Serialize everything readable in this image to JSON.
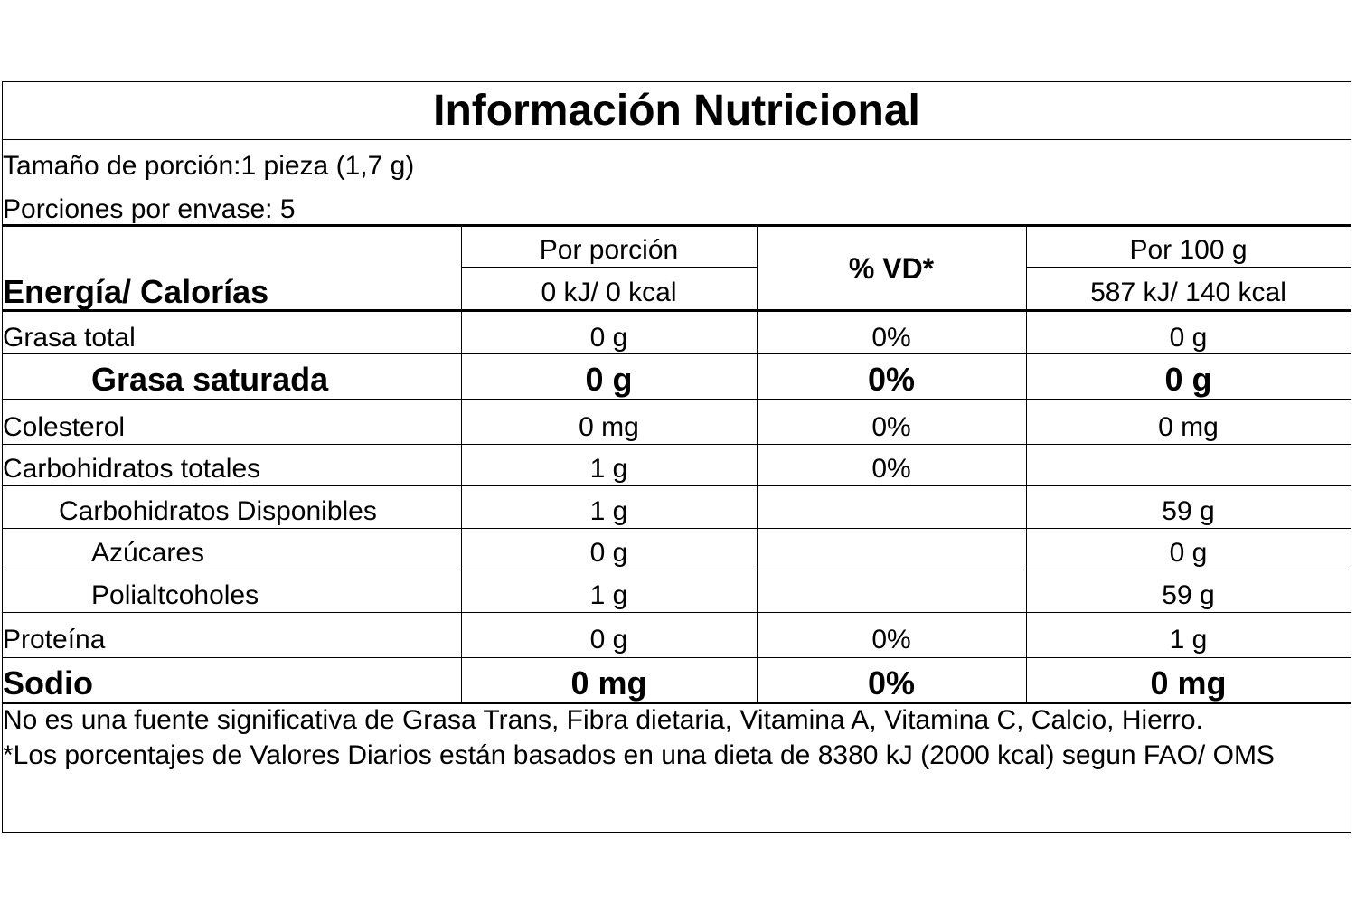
{
  "title": "Información Nutricional",
  "serving_size": "Tamaño de porción:1 pieza (1,7 g)",
  "servings_per_container": "Porciones por envase: 5",
  "header": {
    "energy_label": "Energía/ Calorías",
    "per_serving_label": "Por porción",
    "per_serving_energy": "0 kJ/ 0 kcal",
    "dv_label": "% VD*",
    "per_100g_label": "Por 100 g",
    "per_100g_energy": "587 kJ/ 140 kcal"
  },
  "rows": [
    {
      "name": "Grasa total",
      "per_serving": "0 g",
      "dv": "0%",
      "per_100g": "0 g"
    },
    {
      "name": "Grasa saturada",
      "per_serving": "0 g",
      "dv": "0%",
      "per_100g": "0 g"
    },
    {
      "name": "Colesterol",
      "per_serving": "0 mg",
      "dv": "0%",
      "per_100g": "0 mg"
    },
    {
      "name": "Carbohidratos totales",
      "per_serving": "1 g",
      "dv": "0%",
      "per_100g": ""
    },
    {
      "name": "Carbohidratos Disponibles",
      "per_serving": "1 g",
      "dv": "",
      "per_100g": "59 g"
    },
    {
      "name": "Azúcares",
      "per_serving": "0 g",
      "dv": "",
      "per_100g": "0 g"
    },
    {
      "name": "Polialtcoholes",
      "per_serving": "1 g",
      "dv": "",
      "per_100g": "59 g"
    },
    {
      "name": "Proteína",
      "per_serving": "0 g",
      "dv": "0%",
      "per_100g": "1 g"
    },
    {
      "name": "Sodio",
      "per_serving": "0 mg",
      "dv": "0%",
      "per_100g": "0 mg"
    }
  ],
  "footnotes": {
    "not_significant": "No es una fuente significativa de Grasa Trans, Fibra dietaria, Vitamina A, Vitamina C, Calcio, Hierro.",
    "dv_basis": "*Los porcentajes de Valores Diarios están basados en una dieta de 8380 kJ (2000 kcal) segun FAO/ OMS"
  }
}
